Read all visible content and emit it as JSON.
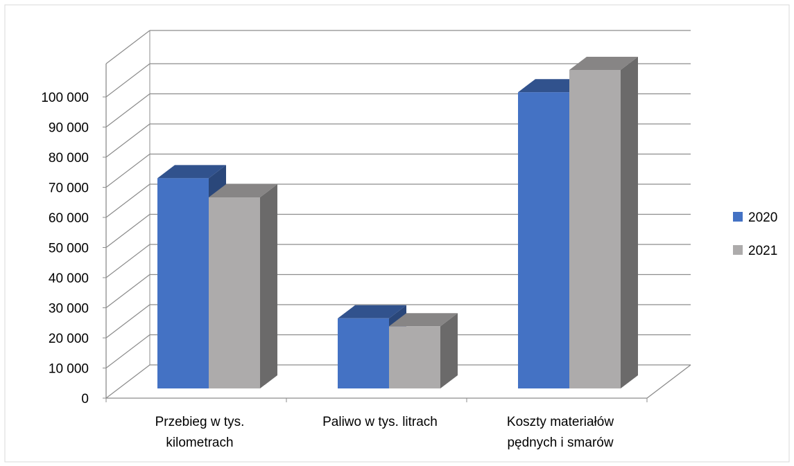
{
  "chart_data": {
    "type": "bar",
    "categories": [
      [
        "Przebieg w tys.",
        "kilometrach"
      ],
      [
        "Paliwo w tys. litrach"
      ],
      [
        "Koszty materiałów",
        "pędnych i smarów"
      ]
    ],
    "series": [
      {
        "name": "2020",
        "values": [
          66000,
          22000,
          93000
        ],
        "color": "#4472C4"
      },
      {
        "name": "2021",
        "values": [
          60000,
          19500,
          100000
        ],
        "color": "#ADABAB"
      }
    ],
    "ylim": [
      0,
      100000
    ],
    "yticks": [
      0,
      10000,
      20000,
      30000,
      40000,
      50000,
      60000,
      70000,
      80000,
      90000,
      100000
    ],
    "tick_labels": [
      "0",
      "10 000",
      "20 000",
      "30 000",
      "40 000",
      "50 000",
      "60 000",
      "70 000",
      "80 000",
      "90 000",
      "100 000"
    ],
    "grid": true,
    "legend": "right",
    "style": "3d-clustered-column"
  }
}
